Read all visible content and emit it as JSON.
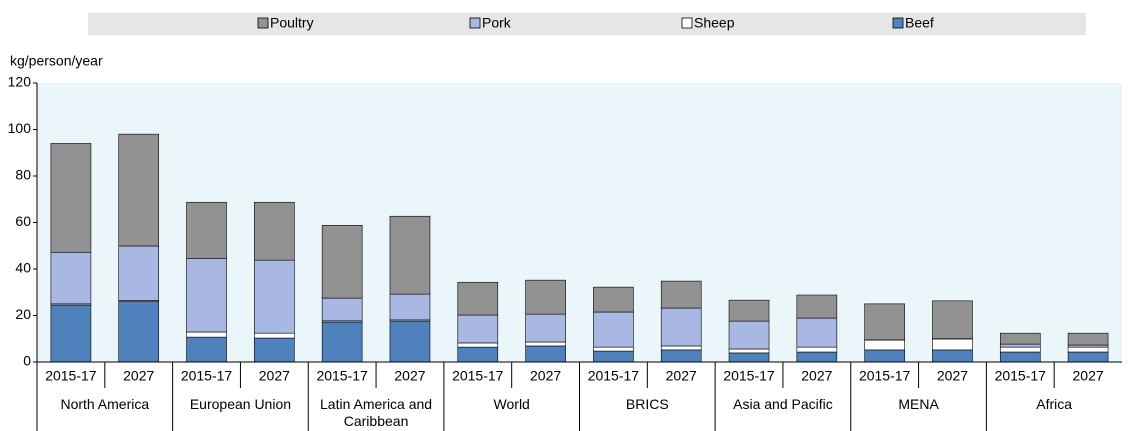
{
  "chart_data": {
    "type": "stacked_bar",
    "ylabel": "kg/person/year",
    "categories": [
      "2015-17",
      "2027",
      "2015-17",
      "2027",
      "2015-17",
      "2027",
      "2015-17",
      "2027",
      "2015-17",
      "2027",
      "2015-17",
      "2027",
      "2015-17",
      "2027",
      "2015-17",
      "2027"
    ],
    "groups": [
      "North America",
      "European Union",
      "Latin America and Caribbean",
      "World",
      "BRICS",
      "Asia and Pacific",
      "MENA",
      "Africa"
    ],
    "series": [
      {
        "name": "Beef",
        "color": "#4f81bd",
        "values": [
          24.5,
          26,
          10.7,
          10.3,
          17.2,
          17.6,
          6.4,
          6.9,
          4.7,
          5.2,
          3.9,
          4.3,
          5.2,
          5.2,
          4.3,
          4.3
        ]
      },
      {
        "name": "Sheep",
        "color": "#ffffff",
        "values": [
          0.5,
          0.5,
          2.2,
          2.1,
          0.5,
          0.5,
          1.8,
          1.7,
          1.7,
          1.7,
          1.7,
          2.1,
          4.2,
          4.7,
          2.1,
          2.1
        ]
      },
      {
        "name": "Pork",
        "color": "#a9b8e2",
        "values": [
          22.2,
          23.4,
          31.7,
          31.4,
          9.8,
          11.1,
          12,
          12,
          15.1,
          16.3,
          12,
          12.5,
          0.1,
          0.1,
          1.3,
          0.9
        ]
      },
      {
        "name": "Poultry",
        "color": "#929292",
        "values": [
          46.8,
          48.1,
          24.1,
          24.9,
          31.3,
          33.5,
          14.1,
          14.6,
          10.7,
          11.6,
          9,
          9.9,
          15.5,
          16.3,
          4.7,
          5.1
        ]
      }
    ],
    "ylim": [
      0,
      120
    ],
    "yticks": [
      0,
      20,
      40,
      60,
      80,
      100,
      120
    ],
    "grid": false
  }
}
